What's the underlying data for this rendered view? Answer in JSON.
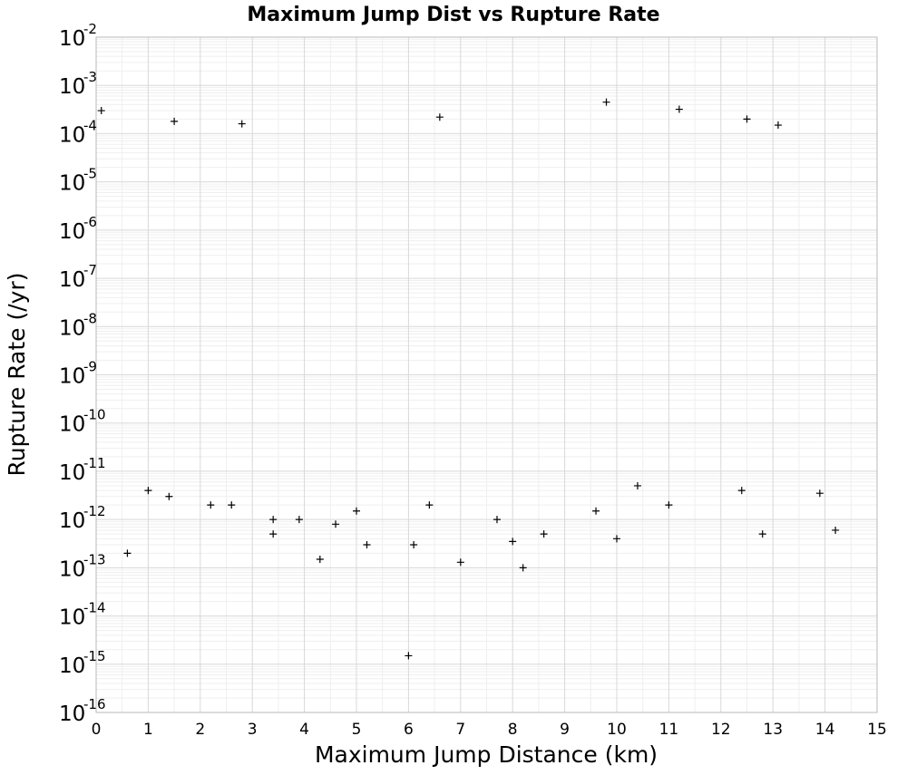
{
  "chart_data": {
    "type": "scatter",
    "title": "Maximum Jump Dist vs Rupture Rate",
    "xlabel": "Maximum Jump Distance (km)",
    "ylabel": "Rupture Rate (/yr)",
    "xlim": [
      0,
      15
    ],
    "ylim": [
      1e-16,
      0.01
    ],
    "y_scale": "log",
    "grid": true,
    "marker": "+",
    "marker_color": "#000000",
    "x_ticks": [
      "0",
      "1",
      "2",
      "3",
      "4",
      "5",
      "6",
      "7",
      "8",
      "9",
      "10",
      "11",
      "12",
      "13",
      "14",
      "15"
    ],
    "y_ticks": [
      {
        "base": "10",
        "exp": "-2"
      },
      {
        "base": "10",
        "exp": "-3"
      },
      {
        "base": "10",
        "exp": "-4"
      },
      {
        "base": "10",
        "exp": "-5"
      },
      {
        "base": "10",
        "exp": "-6"
      },
      {
        "base": "10",
        "exp": "-7"
      },
      {
        "base": "10",
        "exp": "-8"
      },
      {
        "base": "10",
        "exp": "-9"
      },
      {
        "base": "10",
        "exp": "-10"
      },
      {
        "base": "10",
        "exp": "-11"
      },
      {
        "base": "10",
        "exp": "-12"
      },
      {
        "base": "10",
        "exp": "-13"
      },
      {
        "base": "10",
        "exp": "-14"
      },
      {
        "base": "10",
        "exp": "-15"
      },
      {
        "base": "10",
        "exp": "-16"
      }
    ],
    "series": [
      {
        "points": [
          [
            0.6,
            2e-13
          ],
          [
            6.0,
            1.5e-15
          ],
          [
            7.0,
            1.3e-13
          ],
          [
            8.2,
            1e-13
          ],
          [
            10.0,
            4e-13
          ],
          [
            9.8,
            0.00045
          ],
          [
            11.2,
            0.00032
          ],
          [
            1.5,
            0.00018
          ],
          [
            2.8,
            0.00016
          ],
          [
            12.5,
            0.0002
          ],
          [
            6.6,
            0.00022
          ],
          [
            13.1,
            0.00015
          ],
          [
            0.1,
            0.0003
          ],
          [
            4.3,
            1.5e-13
          ],
          [
            5.2,
            3e-13
          ],
          [
            6.1,
            3e-13
          ],
          [
            8.0,
            3.5e-13
          ],
          [
            3.4,
            5e-13
          ],
          [
            4.6,
            8e-13
          ],
          [
            14.2,
            6e-13
          ],
          [
            12.8,
            5e-13
          ],
          [
            8.6,
            5e-13
          ],
          [
            1.0,
            4e-12
          ],
          [
            1.4,
            3e-12
          ],
          [
            2.2,
            2e-12
          ],
          [
            2.6,
            2e-12
          ],
          [
            3.4,
            1e-12
          ],
          [
            3.9,
            1e-12
          ],
          [
            5.0,
            1.5e-12
          ],
          [
            6.4,
            2e-12
          ],
          [
            7.7,
            1e-12
          ],
          [
            9.6,
            1.5e-12
          ],
          [
            10.4,
            5e-12
          ],
          [
            11.0,
            2e-12
          ],
          [
            12.4,
            4e-12
          ],
          [
            13.9,
            3.5e-12
          ]
        ]
      }
    ]
  }
}
